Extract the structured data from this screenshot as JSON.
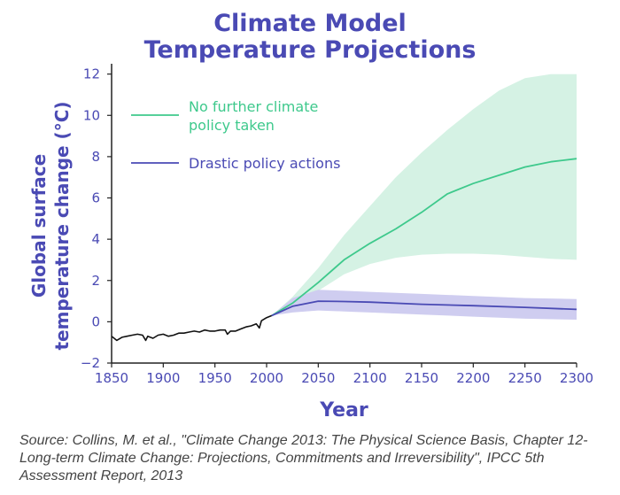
{
  "title_line1": "Climate Model",
  "title_line2": "Temperature Projections",
  "source_text": "Source: Collins, M. et al., \"Climate Change 2013: The Physical Science Basis, Chapter 12- Long-term Climate Change: Projections, Commitments and Irreversibility\", IPCC 5th Assessment Report, 2013",
  "colors": {
    "title": "#4a4ab4",
    "no_policy": "#3ec98c",
    "no_policy_band": "#d5f2e4",
    "drastic": "#4a4ab4",
    "drastic_band": "#cfcdf0",
    "historical": "#111111"
  },
  "chart_data": {
    "type": "line",
    "xlabel": "Year",
    "ylabel_line1": "Global surface",
    "ylabel_line2": "temperature change (°C)",
    "xlim": [
      1850,
      2300
    ],
    "ylim": [
      -2,
      12.5
    ],
    "x_ticks": [
      1850,
      1900,
      1950,
      2000,
      2050,
      2100,
      2150,
      2200,
      2250,
      2300
    ],
    "y_ticks": [
      -2,
      0,
      2,
      4,
      6,
      8,
      10,
      12
    ],
    "legend_position": "top-left",
    "historical": {
      "x": [
        1850,
        1855,
        1860,
        1865,
        1870,
        1875,
        1880,
        1883,
        1885,
        1890,
        1895,
        1900,
        1905,
        1910,
        1915,
        1920,
        1925,
        1930,
        1935,
        1940,
        1945,
        1950,
        1955,
        1960,
        1962,
        1965,
        1970,
        1975,
        1980,
        1985,
        1990,
        1993,
        1995,
        2000,
        2005
      ],
      "y": [
        -0.7,
        -0.9,
        -0.75,
        -0.7,
        -0.65,
        -0.6,
        -0.65,
        -0.9,
        -0.7,
        -0.8,
        -0.65,
        -0.6,
        -0.7,
        -0.65,
        -0.55,
        -0.55,
        -0.5,
        -0.45,
        -0.5,
        -0.4,
        -0.45,
        -0.45,
        -0.4,
        -0.4,
        -0.6,
        -0.45,
        -0.45,
        -0.35,
        -0.25,
        -0.2,
        -0.1,
        -0.3,
        0.05,
        0.2,
        0.3
      ]
    },
    "series": [
      {
        "name": "No further climate policy taken",
        "legend_lines": [
          "No further climate",
          "policy taken"
        ],
        "x": [
          2005,
          2025,
          2050,
          2075,
          2100,
          2125,
          2150,
          2175,
          2200,
          2225,
          2250,
          2275,
          2300
        ],
        "y": [
          0.3,
          0.9,
          1.9,
          3.0,
          3.8,
          4.5,
          5.3,
          6.2,
          6.7,
          7.1,
          7.5,
          7.75,
          7.9
        ],
        "band_upper": [
          0.3,
          1.2,
          2.6,
          4.2,
          5.6,
          7.0,
          8.2,
          9.3,
          10.3,
          11.2,
          11.8,
          12.0,
          12.0
        ],
        "band_lower": [
          0.3,
          0.7,
          1.5,
          2.3,
          2.8,
          3.1,
          3.25,
          3.3,
          3.3,
          3.25,
          3.15,
          3.05,
          3.0
        ]
      },
      {
        "name": "Drastic policy actions",
        "legend_lines": [
          "Drastic policy actions"
        ],
        "x": [
          2005,
          2025,
          2050,
          2075,
          2100,
          2150,
          2200,
          2250,
          2300
        ],
        "y": [
          0.3,
          0.75,
          1.0,
          0.98,
          0.95,
          0.85,
          0.78,
          0.7,
          0.6
        ],
        "band_upper": [
          0.3,
          1.15,
          1.55,
          1.5,
          1.45,
          1.35,
          1.25,
          1.15,
          1.1
        ],
        "band_lower": [
          0.3,
          0.45,
          0.55,
          0.5,
          0.45,
          0.35,
          0.25,
          0.15,
          0.1
        ]
      }
    ]
  }
}
